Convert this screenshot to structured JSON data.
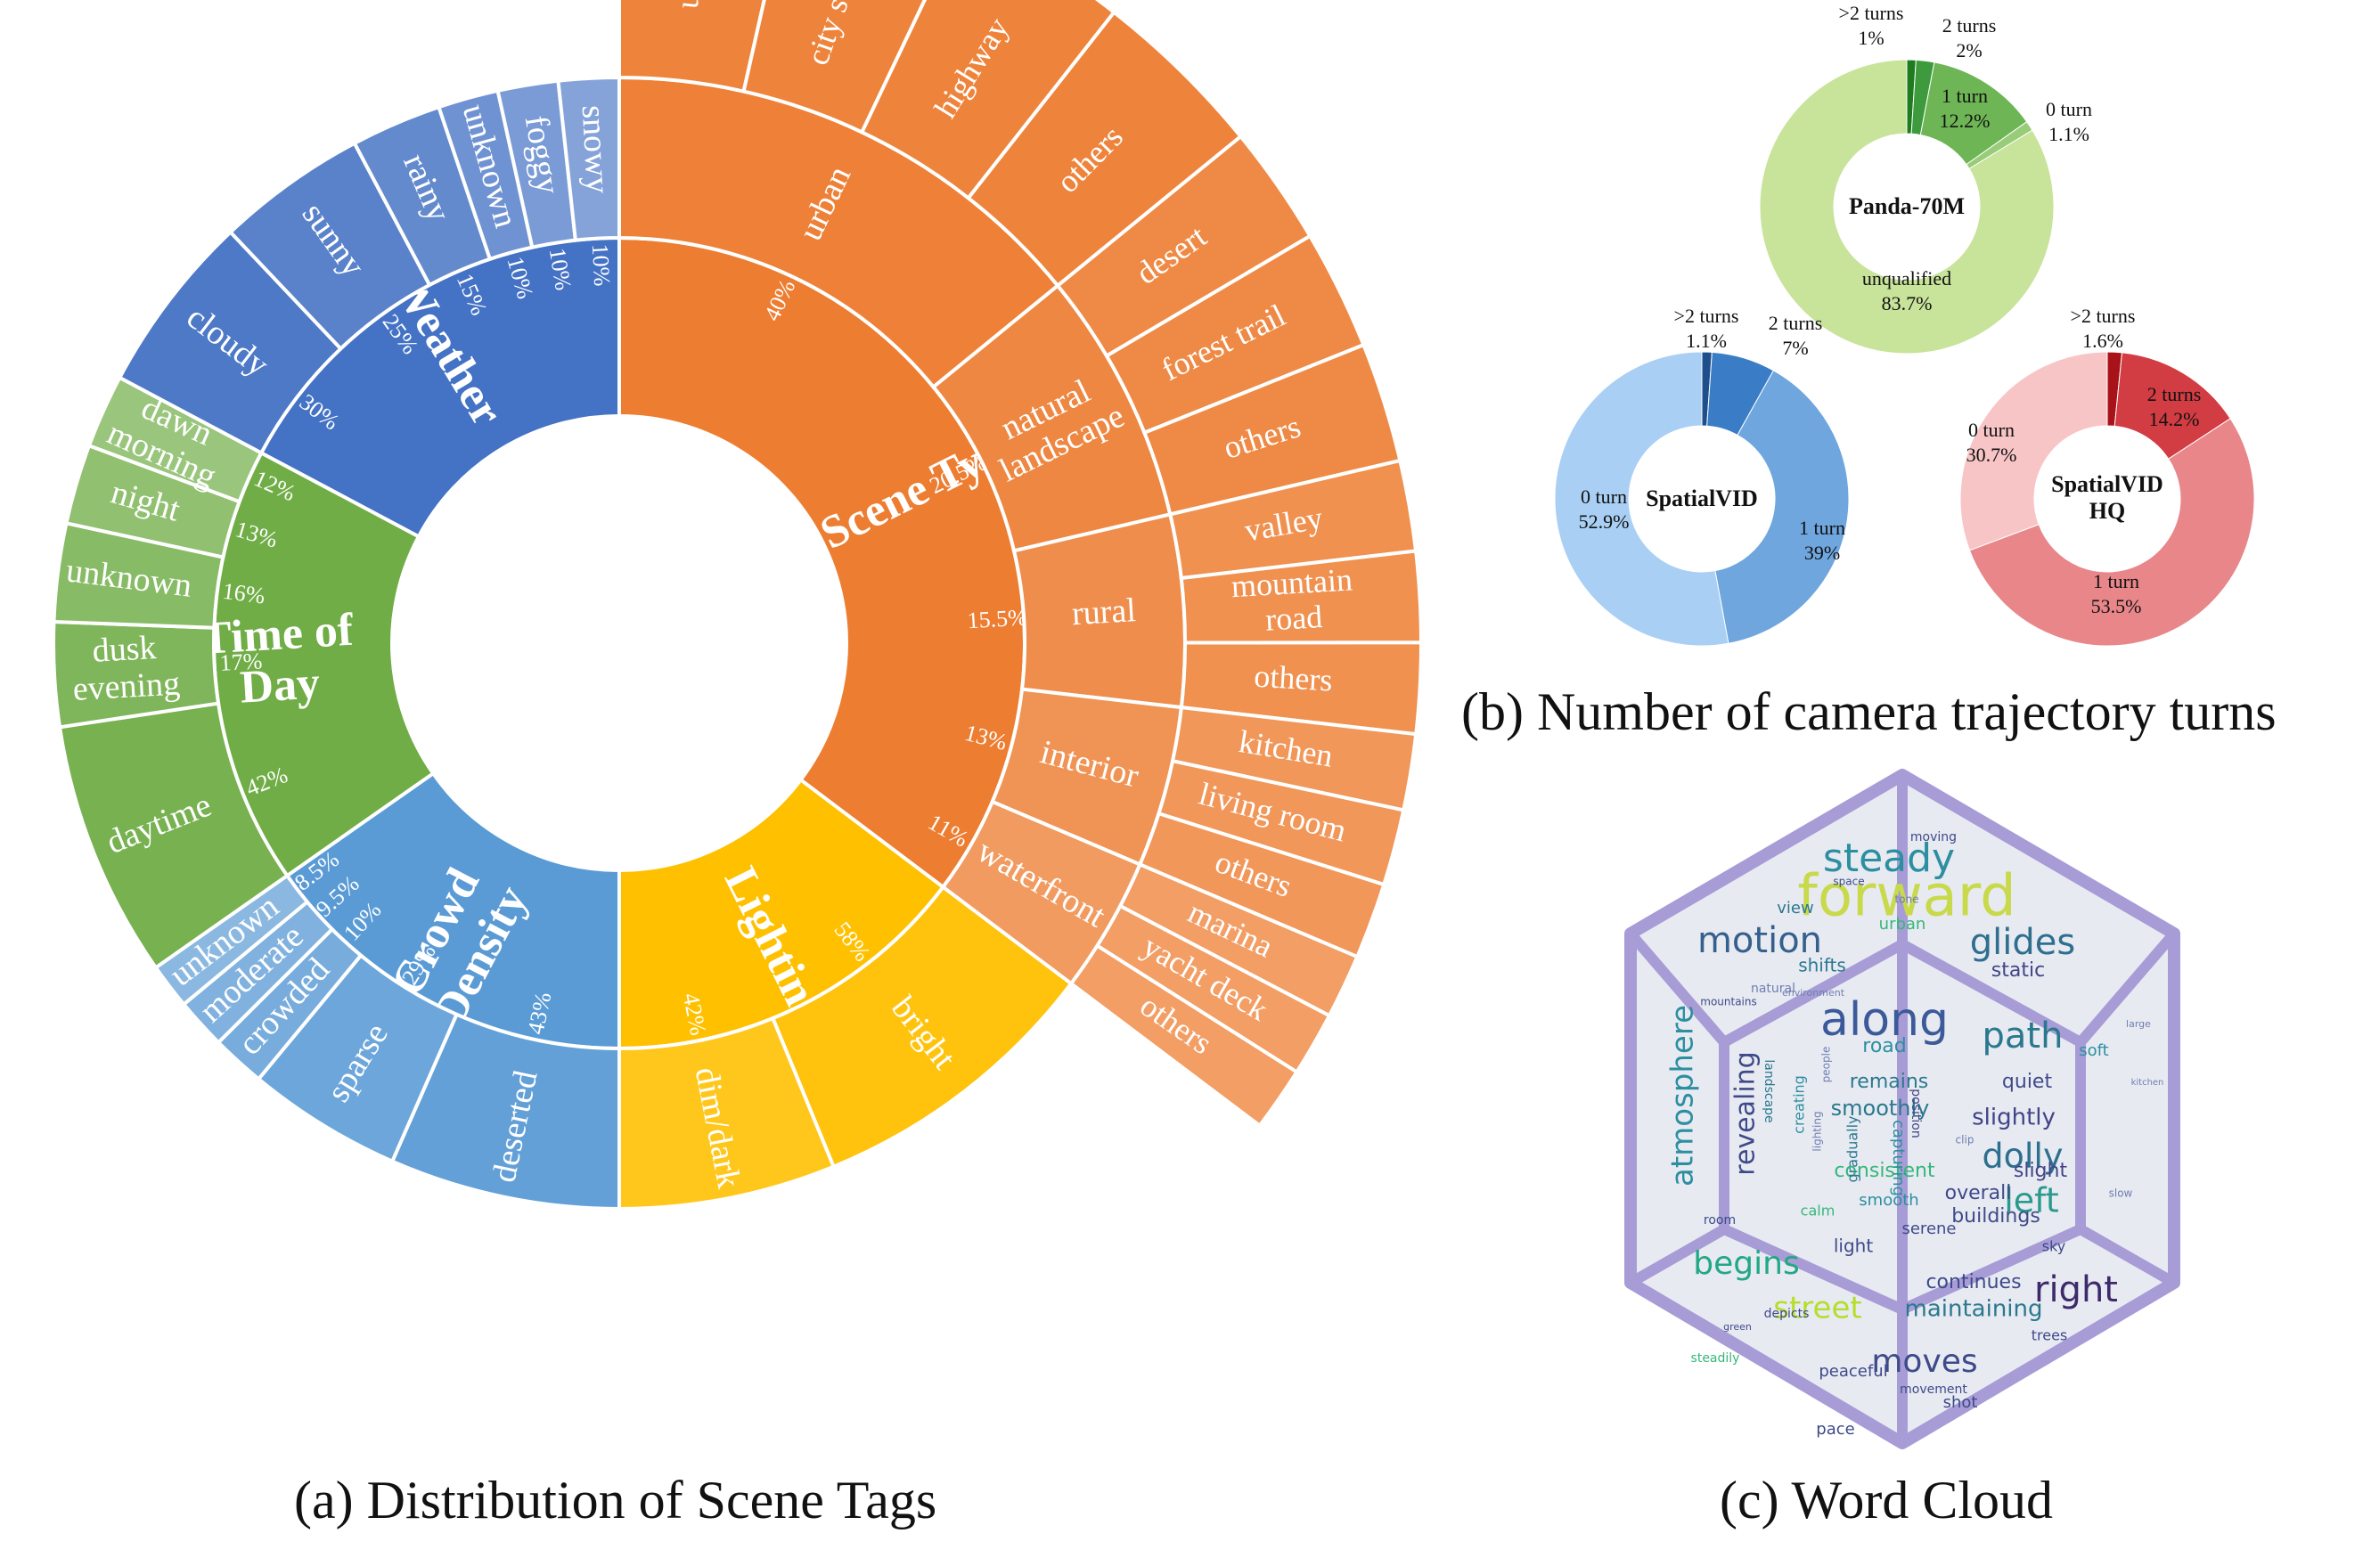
{
  "captions": {
    "a": "(a) Distribution of Scene Tags",
    "b": "(b) Number of camera trajectory turns",
    "c": "(c) Word Cloud"
  },
  "chart_data": [
    {
      "type": "sunburst",
      "title": "(a) Distribution of Scene Tags",
      "categories": [
        {
          "name": "Scene Type",
          "color": "#ED7D31",
          "children": [
            {
              "name": "urban",
              "pct": "40%",
              "leaves": [
                "urban",
                "city street",
                "highway",
                "others"
              ]
            },
            {
              "name": "natural landscape",
              "pct": "20.5%",
              "leaves": [
                "desert",
                "forest trail",
                "others"
              ]
            },
            {
              "name": "rural",
              "pct": "15.5%",
              "leaves": [
                "valley",
                "mountain road",
                "others"
              ]
            },
            {
              "name": "interior",
              "pct": "13%",
              "leaves": [
                "kitchen",
                "living room",
                "others"
              ]
            },
            {
              "name": "waterfront",
              "pct": "11%",
              "leaves": [
                "marina",
                "yacht deck",
                "others"
              ]
            }
          ]
        },
        {
          "name": "Lighting",
          "color": "#FFC000",
          "children": [
            {
              "name": "bright",
              "pct": "58%"
            },
            {
              "name": "dim/dark",
              "pct": "42%"
            }
          ]
        },
        {
          "name": "Crowd Density",
          "color": "#5B9BD5",
          "children": [
            {
              "name": "deserted",
              "pct": "43%"
            },
            {
              "name": "sparse",
              "pct": "29%"
            },
            {
              "name": "crowded",
              "pct": "10%"
            },
            {
              "name": "moderate",
              "pct": "9.5%"
            },
            {
              "name": "unknown",
              "pct": "8.5%"
            }
          ]
        },
        {
          "name": "Time of Day",
          "color": "#70AD47",
          "children": [
            {
              "name": "daytime",
              "pct": "42%"
            },
            {
              "name": "dusk evening",
              "pct": "17%"
            },
            {
              "name": "unknown",
              "pct": "16%"
            },
            {
              "name": "night",
              "pct": "13%"
            },
            {
              "name": "dawn morning",
              "pct": "12%"
            }
          ]
        },
        {
          "name": "Weather",
          "color": "#4472C4",
          "children": [
            {
              "name": "cloudy",
              "pct": "30%"
            },
            {
              "name": "sunny",
              "pct": "25%"
            },
            {
              "name": "rainy",
              "pct": "15%"
            },
            {
              "name": "unknown",
              "pct": "10%"
            },
            {
              "name": "foggy",
              "pct": "10%"
            },
            {
              "name": "snowy",
              "pct": "10%"
            }
          ]
        }
      ]
    },
    {
      "type": "pie",
      "subtype": "donut",
      "title": "Panda-70M",
      "slices": [
        {
          "label": ">2 turns",
          "value": 1,
          "pct": "1%",
          "color": "#1E7B1E"
        },
        {
          "label": "2 turns",
          "value": 2,
          "pct": "2%",
          "color": "#3D9A3D"
        },
        {
          "label": "1 turn",
          "value": 12.2,
          "pct": "12.2%",
          "color": "#6DB555"
        },
        {
          "label": "0 turn",
          "value": 1.1,
          "pct": "1.1%",
          "color": "#98CC78"
        },
        {
          "label": "unqualified",
          "value": 83.7,
          "pct": "83.7%",
          "color": "#C8E39A"
        }
      ]
    },
    {
      "type": "pie",
      "subtype": "donut",
      "title": "SpatialVID",
      "slices": [
        {
          "label": ">2 turns",
          "value": 1.1,
          "pct": "1.1%",
          "color": "#1F4E8C"
        },
        {
          "label": "2 turns",
          "value": 7,
          "pct": "7%",
          "color": "#3A7DC6"
        },
        {
          "label": "1 turn",
          "value": 39,
          "pct": "39%",
          "color": "#6FA6DE"
        },
        {
          "label": "0 turn",
          "value": 52.9,
          "pct": "52.9%",
          "color": "#A9CFF4"
        }
      ]
    },
    {
      "type": "pie",
      "subtype": "donut",
      "title": "SpatialVID HQ",
      "slices": [
        {
          "label": ">2 turns",
          "value": 1.6,
          "pct": "1.6%",
          "color": "#A8131A"
        },
        {
          "label": "2 turns",
          "value": 14.2,
          "pct": "14.2%",
          "color": "#D23C43"
        },
        {
          "label": "1 turn",
          "value": 53.5,
          "pct": "53.5%",
          "color": "#E8868A"
        },
        {
          "label": "0 turn",
          "value": 30.7,
          "pct": "30.7%",
          "color": "#F8C5C7"
        }
      ]
    }
  ],
  "wordcloud": {
    "title": "(c) Word Cloud",
    "frame_color": "#A79CD6",
    "words": [
      {
        "t": "forward",
        "s": 64,
        "c": "#C8D94A"
      },
      {
        "t": "along",
        "s": 52,
        "c": "#3C5A9A"
      },
      {
        "t": "steady",
        "s": 44,
        "c": "#2C8FA0"
      },
      {
        "t": "motion",
        "s": 40,
        "c": "#35608D"
      },
      {
        "t": "glides",
        "s": 40,
        "c": "#2E6F8E"
      },
      {
        "t": "path",
        "s": 40,
        "c": "#2A788E"
      },
      {
        "t": "dolly",
        "s": 38,
        "c": "#2E6F8E"
      },
      {
        "t": "left",
        "s": 38,
        "c": "#2A9A8C"
      },
      {
        "t": "right",
        "s": 40,
        "c": "#3E2A6B"
      },
      {
        "t": "moves",
        "s": 36,
        "c": "#3E4A89"
      },
      {
        "t": "begins",
        "s": 36,
        "c": "#22A884"
      },
      {
        "t": "street",
        "s": 34,
        "c": "#B5DE2B"
      },
      {
        "t": "atmosphere",
        "s": 34,
        "c": "#2C8FA0"
      },
      {
        "t": "revealing",
        "s": 30,
        "c": "#3E4A89"
      },
      {
        "t": "maintaining",
        "s": 26,
        "c": "#2A788E"
      },
      {
        "t": "continues",
        "s": 22,
        "c": "#3E4A89"
      },
      {
        "t": "static",
        "s": 22,
        "c": "#414487"
      },
      {
        "t": "quiet",
        "s": 22,
        "c": "#3E4A89"
      },
      {
        "t": "slightly",
        "s": 26,
        "c": "#414487"
      },
      {
        "t": "smoothly",
        "s": 24,
        "c": "#2A788E"
      },
      {
        "t": "remains",
        "s": 22,
        "c": "#2A788E"
      },
      {
        "t": "consistent",
        "s": 22,
        "c": "#35B779"
      },
      {
        "t": "overall",
        "s": 22,
        "c": "#3E4A89"
      },
      {
        "t": "buildings",
        "s": 22,
        "c": "#3E4A89"
      },
      {
        "t": "slight",
        "s": 22,
        "c": "#414487"
      },
      {
        "t": "road",
        "s": 22,
        "c": "#2C8FA0"
      },
      {
        "t": "shifts",
        "s": 20,
        "c": "#2A788E"
      },
      {
        "t": "light",
        "s": 20,
        "c": "#3E4A89"
      },
      {
        "t": "peaceful",
        "s": 18,
        "c": "#3E4A89"
      },
      {
        "t": "pace",
        "s": 18,
        "c": "#3E4A89"
      },
      {
        "t": "shot",
        "s": 18,
        "c": "#3E4A89"
      },
      {
        "t": "soft",
        "s": 18,
        "c": "#2C8FA0"
      },
      {
        "t": "view",
        "s": 18,
        "c": "#2A788E"
      },
      {
        "t": "serene",
        "s": 18,
        "c": "#3E4A89"
      },
      {
        "t": "smooth",
        "s": 18,
        "c": "#2C8FA0"
      },
      {
        "t": "urban",
        "s": 18,
        "c": "#35B779"
      },
      {
        "t": "calm",
        "s": 16,
        "c": "#35B779"
      },
      {
        "t": "trees",
        "s": 16,
        "c": "#3E4A89"
      },
      {
        "t": "sky",
        "s": 16,
        "c": "#3E4A89"
      },
      {
        "t": "depicts",
        "s": 14,
        "c": "#3E4A89"
      },
      {
        "t": "moving",
        "s": 14,
        "c": "#3E4A89"
      },
      {
        "t": "mountains",
        "s": 12,
        "c": "#3E4A89"
      },
      {
        "t": "lighting",
        "s": 12,
        "c": "#6E7FB0"
      },
      {
        "t": "gradually",
        "s": 16,
        "c": "#2A788E"
      },
      {
        "t": "capturing",
        "s": 18,
        "c": "#2C8FA0"
      },
      {
        "t": "creating",
        "s": 16,
        "c": "#2C8FA0"
      },
      {
        "t": "position",
        "s": 14,
        "c": "#414487"
      },
      {
        "t": "landscape",
        "s": 14,
        "c": "#2A788E"
      },
      {
        "t": "movement",
        "s": 14,
        "c": "#3E4A89"
      },
      {
        "t": "room",
        "s": 14,
        "c": "#3E4A89"
      },
      {
        "t": "steadily",
        "s": 14,
        "c": "#35B779"
      },
      {
        "t": "natural",
        "s": 14,
        "c": "#6E7FB0"
      },
      {
        "t": "people",
        "s": 12,
        "c": "#6E7FB0"
      },
      {
        "t": "space",
        "s": 12,
        "c": "#3E4A89"
      },
      {
        "t": "environment",
        "s": 11,
        "c": "#6E7FB0"
      },
      {
        "t": "green",
        "s": 11,
        "c": "#3E4A89"
      },
      {
        "t": "clip",
        "s": 12,
        "c": "#6E7FB0"
      },
      {
        "t": "kitchen",
        "s": 10,
        "c": "#6E7FB0"
      },
      {
        "t": "slow",
        "s": 12,
        "c": "#6E7FB0"
      },
      {
        "t": "large",
        "s": 11,
        "c": "#6E7FB0"
      },
      {
        "t": "tone",
        "s": 12,
        "c": "#6E7FB0"
      }
    ]
  }
}
